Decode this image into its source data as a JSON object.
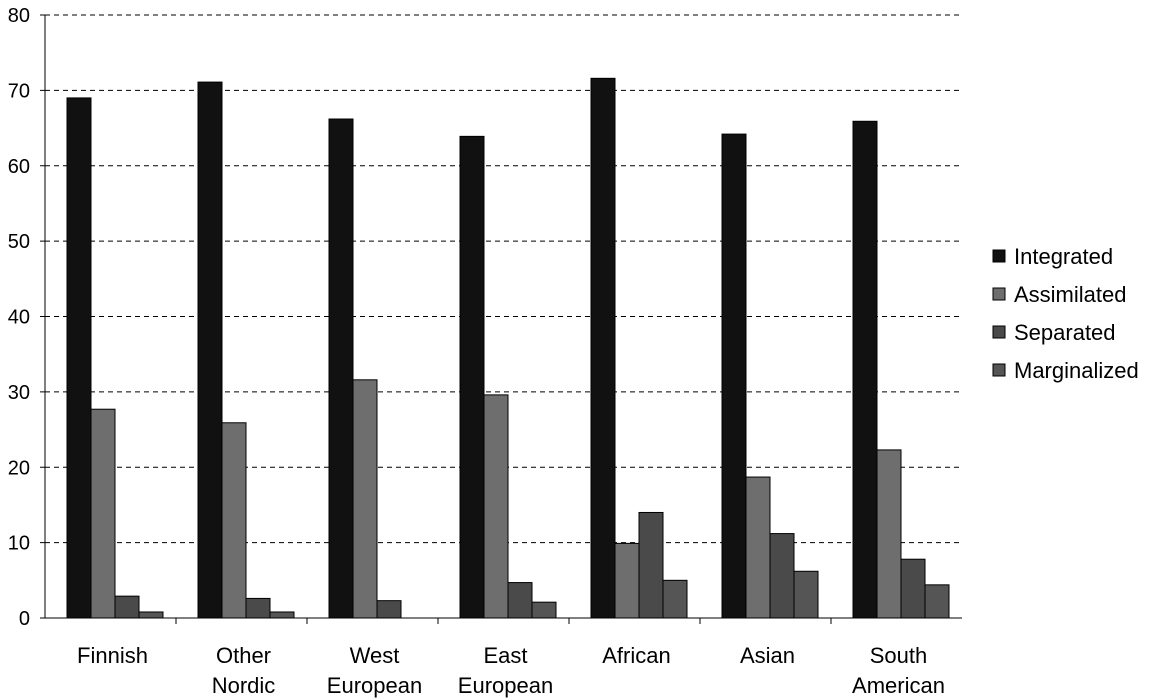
{
  "chart_data": {
    "type": "bar",
    "title": "",
    "xlabel": "",
    "ylabel": "",
    "ylim": [
      0,
      80
    ],
    "yticks": [
      0,
      10,
      20,
      30,
      40,
      50,
      60,
      70,
      80
    ],
    "grid": true,
    "legend_position": "right",
    "categories": [
      [
        "Finnish"
      ],
      [
        "Other",
        "Nordic"
      ],
      [
        "West",
        "European"
      ],
      [
        "East",
        "European"
      ],
      [
        "African"
      ],
      [
        "Asian"
      ],
      [
        "South",
        "American"
      ]
    ],
    "series": [
      {
        "name": "Integrated",
        "color": "#111111",
        "values": [
          69.0,
          71.1,
          66.2,
          63.9,
          71.6,
          64.2,
          65.9
        ]
      },
      {
        "name": "Assimilated",
        "color": "#6e6e6e",
        "values": [
          27.7,
          25.9,
          31.6,
          29.6,
          9.9,
          18.7,
          22.3
        ]
      },
      {
        "name": "Separated",
        "color": "#4a4a4a",
        "values": [
          2.9,
          2.6,
          2.3,
          4.7,
          14.0,
          11.2,
          7.8
        ]
      },
      {
        "name": "Marginalized",
        "color": "#555555",
        "values": [
          0.8,
          0.8,
          0,
          2.1,
          5.0,
          6.2,
          4.4
        ]
      }
    ]
  }
}
